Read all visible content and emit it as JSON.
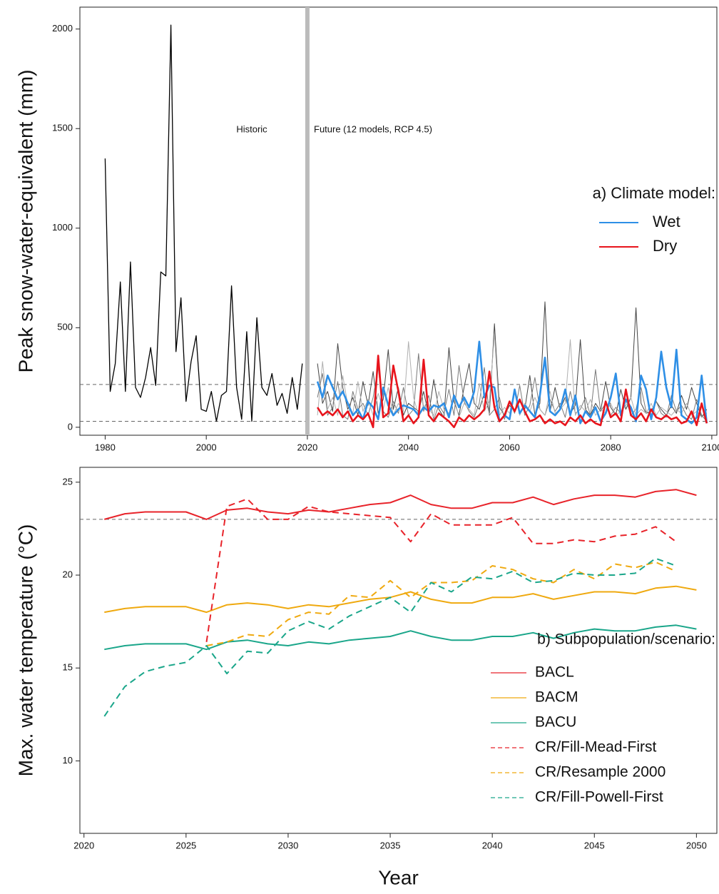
{
  "chart_data": [
    {
      "type": "line",
      "ylabel": "Peak snow-water-equivalent (mm)",
      "xlim": [
        1975,
        2101
      ],
      "ylim": [
        -40,
        2110
      ],
      "xticks": [
        1980,
        2000,
        2020,
        2040,
        2060,
        2080,
        2100
      ],
      "yticks": [
        0,
        500,
        1000,
        1500,
        2000
      ],
      "hlines": [
        215,
        30
      ],
      "vline": 2020,
      "annotations": [
        "Historic",
        "Future (12 models, RCP 4.5)"
      ],
      "legend_title": "a) Climate model:",
      "legend": "right",
      "x": [
        2022,
        2023,
        2024,
        2025,
        2026,
        2027,
        2028,
        2029,
        2030,
        2031,
        2032,
        2033,
        2034,
        2035,
        2036,
        2037,
        2038,
        2039,
        2040,
        2041,
        2042,
        2043,
        2044,
        2045,
        2046,
        2047,
        2048,
        2049,
        2050,
        2051,
        2052,
        2053,
        2054,
        2055,
        2056,
        2057,
        2058,
        2059,
        2060,
        2061,
        2062,
        2063,
        2064,
        2065,
        2066,
        2067,
        2068,
        2069,
        2070,
        2071,
        2072,
        2073,
        2074,
        2075,
        2076,
        2077,
        2078,
        2079,
        2080,
        2081,
        2082,
        2083,
        2084,
        2085,
        2086,
        2087,
        2088,
        2089,
        2090,
        2091,
        2092,
        2093,
        2094,
        2095,
        2096,
        2097,
        2098,
        2099
      ],
      "historic": {
        "color": "#000000",
        "x": [
          1980,
          1981,
          1982,
          1983,
          1984,
          1985,
          1986,
          1987,
          1988,
          1989,
          1990,
          1991,
          1992,
          1993,
          1994,
          1995,
          1996,
          1997,
          1998,
          1999,
          2000,
          2001,
          2002,
          2003,
          2004,
          2005,
          2006,
          2007,
          2008,
          2009,
          2010,
          2011,
          2012,
          2013,
          2014,
          2015,
          2016,
          2017,
          2018,
          2019
        ],
        "values": [
          1350,
          180,
          320,
          730,
          180,
          830,
          200,
          150,
          250,
          400,
          210,
          780,
          760,
          2020,
          380,
          650,
          130,
          330,
          460,
          90,
          80,
          180,
          30,
          160,
          180,
          710,
          200,
          40,
          480,
          30,
          550,
          200,
          160,
          270,
          110,
          170,
          70,
          250,
          90,
          320
        ]
      },
      "series": [
        {
          "color": "#444444",
          "values": [
            320,
            120,
            180,
            80,
            420,
            200,
            90,
            150,
            60,
            230,
            110,
            280,
            70,
            140,
            390,
            90,
            200,
            60,
            120,
            100,
            80,
            180,
            60,
            240,
            90,
            50,
            400,
            130,
            60,
            200,
            320,
            120,
            90,
            170,
            70,
            520,
            100,
            60,
            110,
            80,
            130,
            90,
            260,
            60,
            120,
            630,
            80,
            200,
            90,
            150,
            70,
            110,
            440,
            90,
            60,
            120,
            80,
            230,
            100,
            60,
            190,
            90,
            150,
            600,
            120,
            70,
            80,
            130,
            90,
            60,
            110,
            70,
            160,
            90,
            200,
            120,
            50,
            90
          ]
        },
        {
          "color": "#7a7a7a",
          "values": [
            150,
            270,
            60,
            100,
            230,
            60,
            40,
            180,
            90,
            120,
            60,
            150,
            300,
            80,
            50,
            130,
            70,
            200,
            60,
            90,
            370,
            80,
            160,
            40,
            110,
            70,
            190,
            60,
            310,
            130,
            80,
            50,
            120,
            300,
            60,
            90,
            150,
            40,
            130,
            70,
            210,
            60,
            110,
            250,
            90,
            60,
            140,
            80,
            120,
            50,
            180,
            70,
            90,
            150,
            60,
            290,
            80,
            120,
            60,
            100,
            70,
            140,
            60,
            90,
            200,
            80,
            60,
            130,
            70,
            50,
            160,
            80,
            110,
            60,
            40,
            140,
            60,
            30
          ]
        },
        {
          "color": "#b0b0b0",
          "values": [
            60,
            330,
            90,
            150,
            60,
            260,
            110,
            70,
            230,
            80,
            140,
            60,
            170,
            90,
            200,
            60,
            120,
            80,
            430,
            150,
            60,
            110,
            90,
            60,
            180,
            90,
            70,
            150,
            50,
            120,
            90,
            60,
            220,
            80,
            130,
            470,
            60,
            100,
            70,
            190,
            60,
            120,
            80,
            150,
            90,
            60,
            180,
            70,
            90,
            120,
            440,
            60,
            110,
            80,
            140,
            60,
            90,
            70,
            120,
            60,
            80,
            110,
            150,
            60,
            90,
            70,
            120,
            60,
            100,
            80,
            60,
            90,
            70,
            120,
            60,
            80,
            50,
            70
          ]
        },
        {
          "name": "Wet",
          "color": "#2e8fe6",
          "values": [
            230,
            150,
            260,
            200,
            140,
            180,
            120,
            60,
            90,
            40,
            130,
            100,
            40,
            200,
            110,
            60,
            90,
            110,
            100,
            90,
            60,
            100,
            80,
            110,
            100,
            120,
            50,
            160,
            100,
            150,
            100,
            180,
            430,
            150,
            210,
            200,
            30,
            60,
            40,
            190,
            70,
            110,
            80,
            50,
            160,
            350,
            80,
            60,
            90,
            190,
            60,
            160,
            20,
            80,
            50,
            100,
            30,
            70,
            150,
            270,
            60,
            140,
            100,
            30,
            260,
            190,
            40,
            150,
            380,
            200,
            100,
            390,
            60,
            40,
            20,
            50,
            260,
            20
          ]
        },
        {
          "name": "Dry",
          "color": "#e8141c",
          "values": [
            100,
            60,
            80,
            60,
            90,
            50,
            80,
            30,
            60,
            40,
            70,
            0,
            360,
            50,
            70,
            310,
            180,
            30,
            60,
            20,
            50,
            340,
            60,
            30,
            70,
            50,
            30,
            0,
            50,
            30,
            60,
            40,
            60,
            90,
            280,
            100,
            30,
            60,
            130,
            80,
            140,
            80,
            30,
            40,
            60,
            20,
            40,
            20,
            30,
            10,
            50,
            30,
            60,
            20,
            40,
            20,
            10,
            130,
            50,
            70,
            30,
            190,
            60,
            40,
            70,
            30,
            90,
            50,
            40,
            60,
            40,
            50,
            20,
            30,
            80,
            10,
            120,
            20
          ]
        }
      ]
    },
    {
      "type": "line",
      "xlabel": "Year",
      "ylabel": "Max. water temperature (°C)",
      "xlim": [
        2019.8,
        2051
      ],
      "ylim": [
        6.1,
        25.8
      ],
      "xticks": [
        2020,
        2025,
        2030,
        2035,
        2040,
        2045,
        2050
      ],
      "yticks": [
        10,
        15,
        20,
        25
      ],
      "hlines": [
        23
      ],
      "legend_title": "b) Subpopulation/scenario:",
      "legend": "lower right",
      "x": [
        2021,
        2022,
        2023,
        2024,
        2025,
        2026,
        2027,
        2028,
        2029,
        2030,
        2031,
        2032,
        2033,
        2034,
        2035,
        2036,
        2037,
        2038,
        2039,
        2040,
        2041,
        2042,
        2043,
        2044,
        2045,
        2046,
        2047,
        2048,
        2049,
        2050
      ],
      "series": [
        {
          "name": "BACL",
          "color": "#e8232a",
          "linestyle": "solid",
          "values": [
            23.0,
            23.3,
            23.4,
            23.4,
            23.4,
            23.0,
            23.5,
            23.6,
            23.4,
            23.3,
            23.5,
            23.4,
            23.6,
            23.8,
            23.9,
            24.3,
            23.8,
            23.6,
            23.6,
            23.9,
            23.9,
            24.2,
            23.8,
            24.1,
            24.3,
            24.3,
            24.2,
            24.5,
            24.6,
            24.3
          ]
        },
        {
          "name": "BACM",
          "color": "#efa90f",
          "linestyle": "solid",
          "values": [
            18.0,
            18.2,
            18.3,
            18.3,
            18.3,
            18.0,
            18.4,
            18.5,
            18.4,
            18.2,
            18.4,
            18.3,
            18.5,
            18.7,
            18.8,
            19.1,
            18.7,
            18.5,
            18.5,
            18.8,
            18.8,
            19.0,
            18.7,
            18.9,
            19.1,
            19.1,
            19.0,
            19.3,
            19.4,
            19.2
          ]
        },
        {
          "name": "BACU",
          "color": "#1aa68a",
          "linestyle": "solid",
          "values": [
            16.0,
            16.2,
            16.3,
            16.3,
            16.3,
            16.0,
            16.4,
            16.5,
            16.3,
            16.2,
            16.4,
            16.3,
            16.5,
            16.6,
            16.7,
            17.0,
            16.7,
            16.5,
            16.5,
            16.7,
            16.7,
            16.9,
            16.6,
            16.9,
            17.1,
            17.0,
            17.0,
            17.2,
            17.3,
            17.1
          ]
        },
        {
          "name": "CR/Fill-Mead-First",
          "color": "#e8232a",
          "linestyle": "dashed",
          "values": [
            null,
            null,
            null,
            null,
            null,
            16.4,
            23.7,
            24.1,
            23.0,
            23.0,
            23.7,
            23.4,
            23.3,
            23.2,
            23.1,
            21.8,
            23.3,
            22.7,
            22.7,
            22.7,
            23.1,
            21.7,
            21.7,
            21.9,
            21.8,
            22.1,
            22.2,
            22.6,
            21.8,
            null
          ]
        },
        {
          "name": "CR/Resample 2000",
          "color": "#efa90f",
          "linestyle": "dashed",
          "values": [
            null,
            null,
            null,
            null,
            null,
            16.2,
            16.4,
            16.8,
            16.7,
            17.6,
            18.0,
            17.9,
            18.9,
            18.8,
            19.7,
            18.8,
            19.6,
            19.6,
            19.7,
            20.5,
            20.3,
            19.8,
            19.6,
            20.3,
            19.8,
            20.6,
            20.4,
            20.7,
            20.2,
            null
          ]
        },
        {
          "name": "CR/Fill-Powell-First",
          "color": "#1aa68a",
          "linestyle": "dashed",
          "values": [
            12.4,
            14.0,
            14.8,
            15.1,
            15.3,
            16.2,
            14.7,
            15.9,
            15.8,
            17.0,
            17.5,
            17.1,
            17.8,
            18.3,
            18.8,
            18.0,
            19.6,
            19.1,
            19.9,
            19.8,
            20.2,
            19.6,
            19.7,
            20.1,
            20.0,
            20.0,
            20.1,
            20.9,
            20.5,
            null
          ]
        }
      ]
    }
  ]
}
